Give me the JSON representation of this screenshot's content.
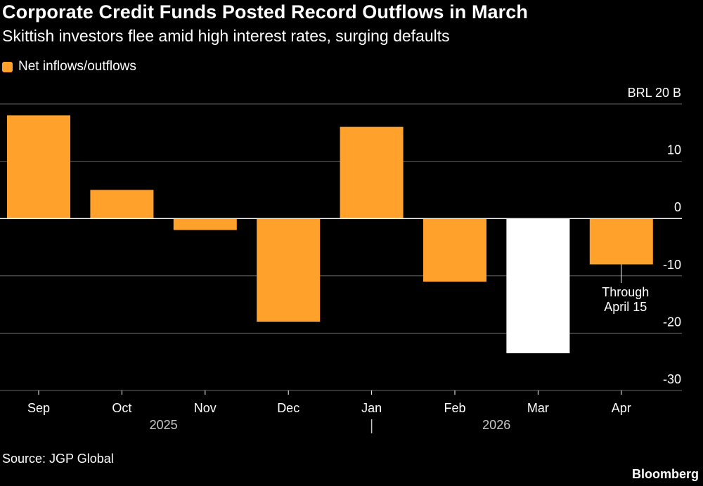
{
  "chart_data": {
    "type": "bar",
    "title": "Corporate Credit Funds Posted Record Outflows in March",
    "subtitle": "Skittish investors flee amid high interest rates, surging defaults",
    "legend": [
      {
        "label": "Net inflows/outflows",
        "color": "#ffa12b"
      }
    ],
    "categories": [
      "Sep",
      "Oct",
      "Nov",
      "Dec",
      "Jan",
      "Feb",
      "Mar",
      "Apr"
    ],
    "values": [
      18,
      5,
      -2,
      -18,
      16,
      -11,
      -23.5,
      -8
    ],
    "highlight_color": "#ffffff",
    "highlight_index": 6,
    "bar_color": "#ffa12b",
    "ylim": [
      -30,
      20
    ],
    "yticks": [
      {
        "value": 20,
        "label": "BRL 20 B"
      },
      {
        "value": 10,
        "label": "10"
      },
      {
        "value": 0,
        "label": "0"
      },
      {
        "value": -10,
        "label": "-10"
      },
      {
        "value": -20,
        "label": "-20"
      },
      {
        "value": -30,
        "label": "-30"
      }
    ],
    "years": [
      {
        "label": "2025"
      },
      {
        "label": "2026"
      }
    ],
    "annotation": {
      "category_index": 7,
      "line1": "Through",
      "line2": "April 15"
    }
  },
  "source": "Source: JGP Global",
  "brand": "Bloomberg"
}
